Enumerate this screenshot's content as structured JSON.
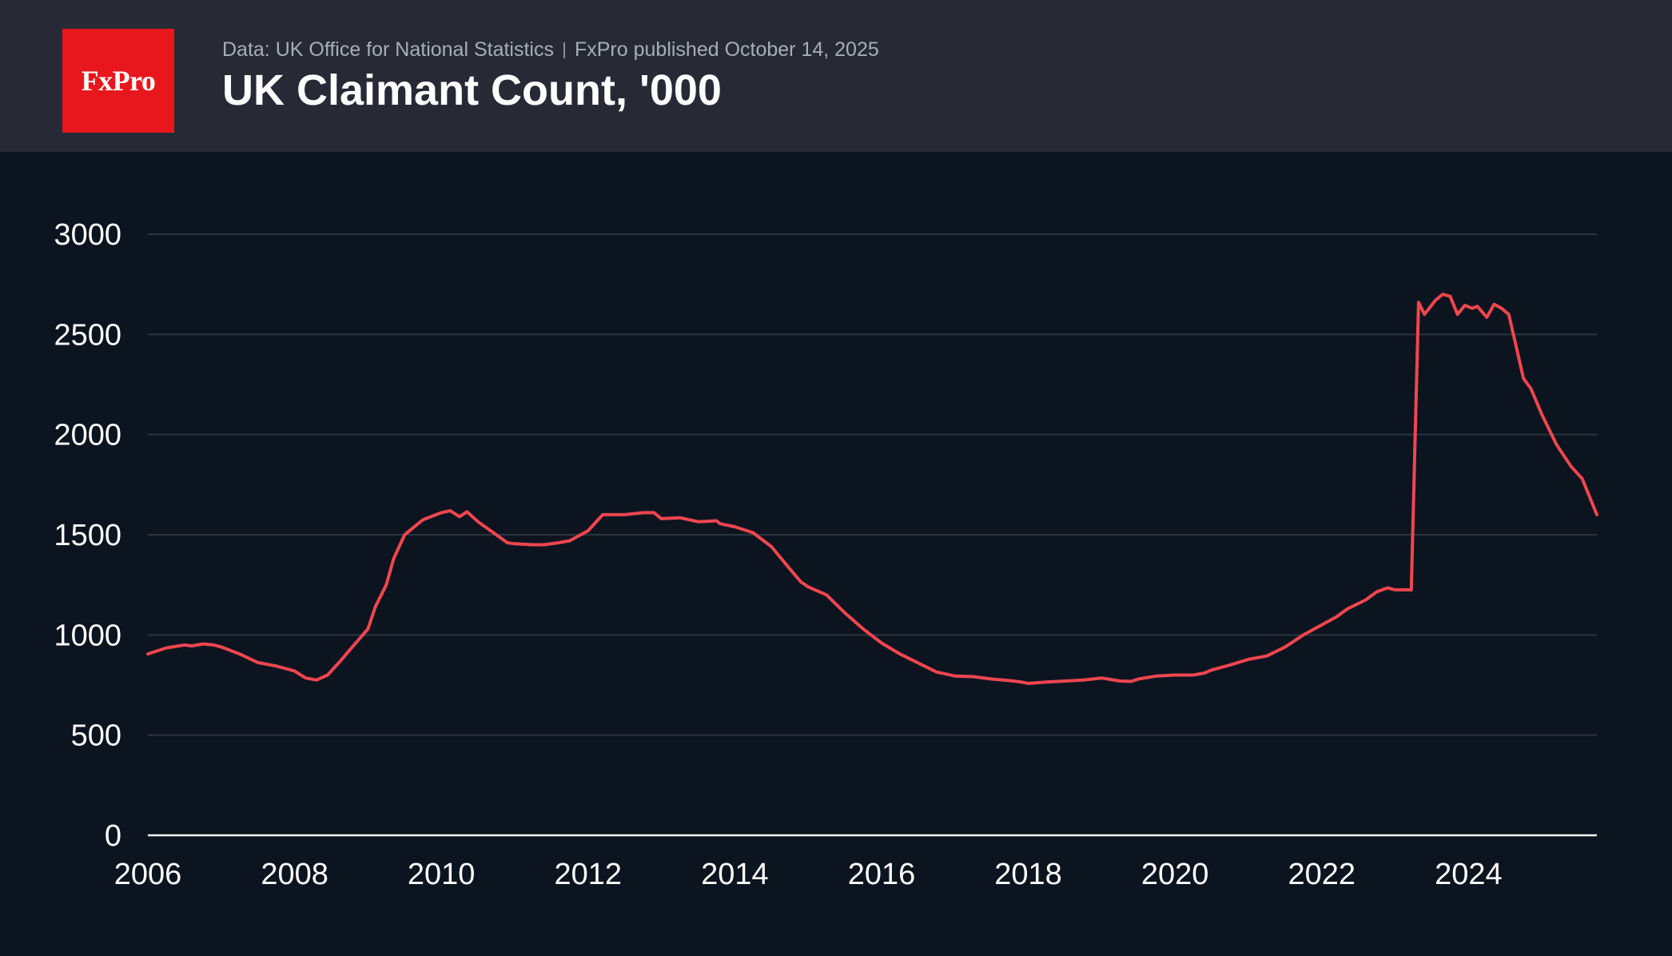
{
  "header": {
    "logo_text": "FxPro",
    "source": "Data: UK Office for National Statistics",
    "published": "FxPro published October 14, 2025",
    "title": "UK Claimant Count, '000"
  },
  "colors": {
    "background": "#0c1420",
    "header_bg": "#272a35",
    "logo_red": "#e8171e",
    "line": "#f0464f",
    "grid": "#2a3542",
    "axis": "#ffffff",
    "tick_label": "#ffffff"
  },
  "chart_data": {
    "type": "line",
    "title": "UK Claimant Count, '000",
    "xlim": [
      2006,
      2025.75
    ],
    "ylim": [
      0,
      3000
    ],
    "y_ticks": [
      0,
      500,
      1000,
      1500,
      2000,
      2500,
      3000
    ],
    "x_ticks": [
      2006,
      2008,
      2010,
      2012,
      2014,
      2016,
      2018,
      2020,
      2022,
      2024
    ],
    "grid": "horizontal",
    "series": [
      {
        "color": "#f0464f",
        "points": [
          [
            2006.0,
            905
          ],
          [
            2006.25,
            935
          ],
          [
            2006.5,
            950
          ],
          [
            2006.6,
            945
          ],
          [
            2006.75,
            955
          ],
          [
            2006.9,
            950
          ],
          [
            2007.0,
            940
          ],
          [
            2007.25,
            905
          ],
          [
            2007.5,
            862
          ],
          [
            2007.75,
            845
          ],
          [
            2008.0,
            820
          ],
          [
            2008.15,
            785
          ],
          [
            2008.3,
            775
          ],
          [
            2008.45,
            800
          ],
          [
            2008.6,
            860
          ],
          [
            2008.8,
            945
          ],
          [
            2009.0,
            1030
          ],
          [
            2009.1,
            1140
          ],
          [
            2009.25,
            1250
          ],
          [
            2009.35,
            1380
          ],
          [
            2009.5,
            1500
          ],
          [
            2009.75,
            1575
          ],
          [
            2010.0,
            1610
          ],
          [
            2010.12,
            1620
          ],
          [
            2010.25,
            1590
          ],
          [
            2010.35,
            1615
          ],
          [
            2010.5,
            1565
          ],
          [
            2010.75,
            1500
          ],
          [
            2010.9,
            1460
          ],
          [
            2011.0,
            1455
          ],
          [
            2011.25,
            1450
          ],
          [
            2011.4,
            1450
          ],
          [
            2011.6,
            1460
          ],
          [
            2011.75,
            1470
          ],
          [
            2012.0,
            1520
          ],
          [
            2012.2,
            1600
          ],
          [
            2012.5,
            1600
          ],
          [
            2012.75,
            1610
          ],
          [
            2012.9,
            1610
          ],
          [
            2013.0,
            1580
          ],
          [
            2013.25,
            1585
          ],
          [
            2013.5,
            1565
          ],
          [
            2013.75,
            1570
          ],
          [
            2013.8,
            1555
          ],
          [
            2014.0,
            1540
          ],
          [
            2014.25,
            1510
          ],
          [
            2014.5,
            1440
          ],
          [
            2014.75,
            1330
          ],
          [
            2014.9,
            1265
          ],
          [
            2015.0,
            1240
          ],
          [
            2015.25,
            1200
          ],
          [
            2015.5,
            1110
          ],
          [
            2015.75,
            1030
          ],
          [
            2016.0,
            960
          ],
          [
            2016.25,
            905
          ],
          [
            2016.5,
            860
          ],
          [
            2016.75,
            815
          ],
          [
            2017.0,
            795
          ],
          [
            2017.25,
            792
          ],
          [
            2017.5,
            780
          ],
          [
            2017.75,
            772
          ],
          [
            2017.9,
            765
          ],
          [
            2018.0,
            758
          ],
          [
            2018.25,
            765
          ],
          [
            2018.5,
            770
          ],
          [
            2018.75,
            775
          ],
          [
            2019.0,
            785
          ],
          [
            2019.25,
            770
          ],
          [
            2019.4,
            768
          ],
          [
            2019.5,
            780
          ],
          [
            2019.75,
            795
          ],
          [
            2020.0,
            800
          ],
          [
            2020.25,
            800
          ],
          [
            2020.4,
            810
          ],
          [
            2020.5,
            825
          ],
          [
            2020.75,
            850
          ],
          [
            2021.0,
            878
          ],
          [
            2021.25,
            895
          ],
          [
            2021.5,
            940
          ],
          [
            2021.75,
            1000
          ],
          [
            2022.0,
            1050
          ],
          [
            2022.2,
            1090
          ],
          [
            2022.35,
            1130
          ],
          [
            2022.6,
            1175
          ],
          [
            2022.75,
            1215
          ],
          [
            2022.9,
            1235
          ],
          [
            2023.0,
            1225
          ],
          [
            2023.15,
            1225
          ],
          [
            2023.22,
            1225
          ],
          [
            2023.32,
            2660
          ],
          [
            2023.4,
            2600
          ],
          [
            2023.55,
            2670
          ],
          [
            2023.65,
            2700
          ],
          [
            2023.75,
            2690
          ],
          [
            2023.85,
            2600
          ],
          [
            2023.95,
            2645
          ],
          [
            2024.05,
            2630
          ],
          [
            2024.12,
            2640
          ],
          [
            2024.25,
            2585
          ],
          [
            2024.35,
            2650
          ],
          [
            2024.45,
            2630
          ],
          [
            2024.55,
            2600
          ],
          [
            2024.75,
            2280
          ],
          [
            2024.85,
            2230
          ],
          [
            2025.0,
            2100
          ],
          [
            2025.2,
            1950
          ],
          [
            2025.4,
            1840
          ],
          [
            2025.55,
            1780
          ],
          [
            2025.75,
            1600
          ]
        ]
      }
    ]
  }
}
